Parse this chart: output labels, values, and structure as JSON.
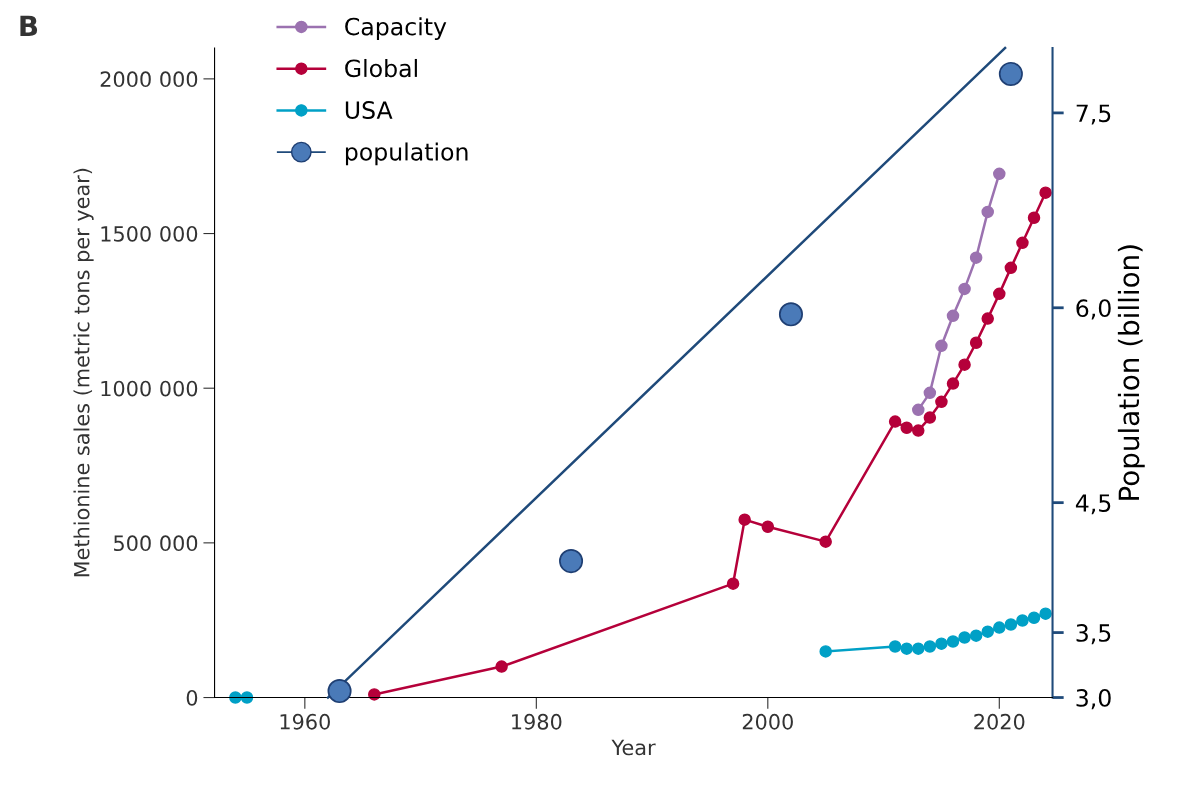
{
  "chart_data": {
    "type": "line",
    "xlabel": "Year",
    "ylabel": "Methionine sales (metric tons per year)",
    "y2label": "Population (billion)",
    "annotations": [
      "B"
    ],
    "xlim": [
      1952.2,
      2024.6
    ],
    "xticks": [
      1960,
      1980,
      2000,
      2020
    ],
    "ylim": [
      0,
      2100000
    ],
    "yticks": [
      {
        "value": 0,
        "label": "0"
      },
      {
        "value": 500000,
        "label": "500 000"
      },
      {
        "value": 1000000,
        "label": "1000 000"
      },
      {
        "value": 1500000,
        "label": "1500 000"
      },
      {
        "value": 2000000,
        "label": "2000 000"
      }
    ],
    "y2lim": [
      3.0,
      8.0
    ],
    "y2ticks": [
      {
        "value": 3.0,
        "label": "3,0"
      },
      {
        "value": 3.5,
        "label": "3,5"
      },
      {
        "value": 4.5,
        "label": "4,5"
      },
      {
        "value": 6.0,
        "label": "6,0"
      },
      {
        "value": 7.5,
        "label": "7,5"
      }
    ],
    "marker": "circle",
    "grid": false,
    "legend": "top left",
    "series": [
      {
        "name": "Capacity",
        "color": "#9b72b0",
        "x": [
          2013,
          2014,
          2015,
          2016,
          2017,
          2018,
          2019,
          2020
        ],
        "values": [
          930000,
          985000,
          1137000,
          1234000,
          1321000,
          1422000,
          1570000,
          1693000
        ]
      },
      {
        "name": "Global",
        "color": "#b5003a",
        "x": [
          1966,
          1977,
          1997,
          1998,
          2000,
          2005,
          2011,
          2012,
          2013,
          2014,
          2015,
          2016,
          2017,
          2018,
          2019,
          2020,
          2021,
          2022,
          2023,
          2024
        ],
        "values": [
          10000,
          100000,
          368000,
          575000,
          552000,
          504000,
          892000,
          872000,
          863000,
          905000,
          956000,
          1015000,
          1076000,
          1147000,
          1225000,
          1305000,
          1389000,
          1470000,
          1551000,
          1632000
        ]
      },
      {
        "name": "USA",
        "color": "#00a0c6",
        "x": [
          1954,
          1955,
          1980,
          2005,
          2011,
          2012,
          2013,
          2014,
          2015,
          2016,
          2017,
          2018,
          2019,
          2020,
          2021,
          2022,
          2023,
          2024
        ],
        "values": [
          0,
          0,
          null,
          149000,
          165000,
          158000,
          158000,
          165000,
          174000,
          181000,
          194000,
          200000,
          213000,
          226000,
          236000,
          249000,
          258000,
          271000
        ]
      },
      {
        "name": "population",
        "type": "scatter",
        "axis": "y2",
        "color": "#4a7ab8",
        "x": [
          1963,
          1983,
          2002,
          2021
        ],
        "values": [
          3.05,
          4.05,
          5.95,
          7.8
        ]
      },
      {
        "type": "line",
        "axis": "y2",
        "marker": "none",
        "color": "#1f4a7a",
        "x": [
          1962,
          2020.5
        ],
        "values": [
          3.0,
          8.0
        ]
      }
    ]
  }
}
